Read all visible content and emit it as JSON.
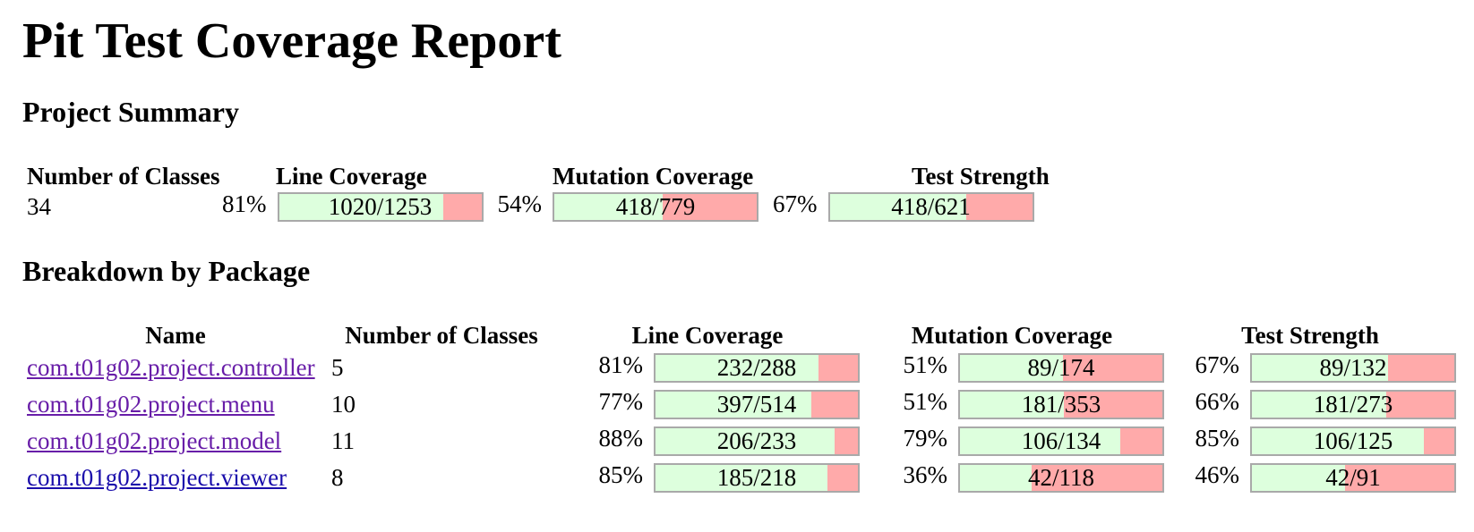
{
  "title": "Pit Test Coverage Report",
  "summary": {
    "heading": "Project Summary",
    "headers": [
      "Number of Classes",
      "Line Coverage",
      "Mutation Coverage",
      "Test Strength"
    ],
    "classes": "34",
    "line": {
      "pct": "81%",
      "legend": "1020/1253",
      "fraction": 0.814
    },
    "mutation": {
      "pct": "54%",
      "legend": "418/779",
      "fraction": 0.537
    },
    "strength": {
      "pct": "67%",
      "legend": "418/621",
      "fraction": 0.673
    }
  },
  "breakdown": {
    "heading": "Breakdown by Package",
    "headers": [
      "Name",
      "Number of Classes",
      "Line Coverage",
      "Mutation Coverage",
      "Test Strength"
    ],
    "rows": [
      {
        "name": "com.t01g02.project.controller",
        "classes": "5",
        "line": {
          "pct": "81%",
          "legend": "232/288",
          "fraction": 0.806
        },
        "mutation": {
          "pct": "51%",
          "legend": "89/174",
          "fraction": 0.511
        },
        "strength": {
          "pct": "67%",
          "legend": "89/132",
          "fraction": 0.674
        }
      },
      {
        "name": "com.t01g02.project.menu",
        "classes": "10",
        "line": {
          "pct": "77%",
          "legend": "397/514",
          "fraction": 0.772
        },
        "mutation": {
          "pct": "51%",
          "legend": "181/353",
          "fraction": 0.513
        },
        "strength": {
          "pct": "66%",
          "legend": "181/273",
          "fraction": 0.663
        }
      },
      {
        "name": "com.t01g02.project.model",
        "classes": "11",
        "line": {
          "pct": "88%",
          "legend": "206/233",
          "fraction": 0.884
        },
        "mutation": {
          "pct": "79%",
          "legend": "106/134",
          "fraction": 0.791
        },
        "strength": {
          "pct": "85%",
          "legend": "106/125",
          "fraction": 0.848
        }
      },
      {
        "name": "com.t01g02.project.viewer",
        "classes": "8",
        "line": {
          "pct": "85%",
          "legend": "185/218",
          "fraction": 0.849
        },
        "mutation": {
          "pct": "36%",
          "legend": "42/118",
          "fraction": 0.356
        },
        "strength": {
          "pct": "46%",
          "legend": "42/91",
          "fraction": 0.462
        }
      }
    ]
  },
  "colors": {
    "covered": "#ddffdd",
    "uncovered": "#ffaaaa",
    "bar_border": "#a9a9a9",
    "link": "#1a0dab",
    "link_visited": "#681da8"
  }
}
